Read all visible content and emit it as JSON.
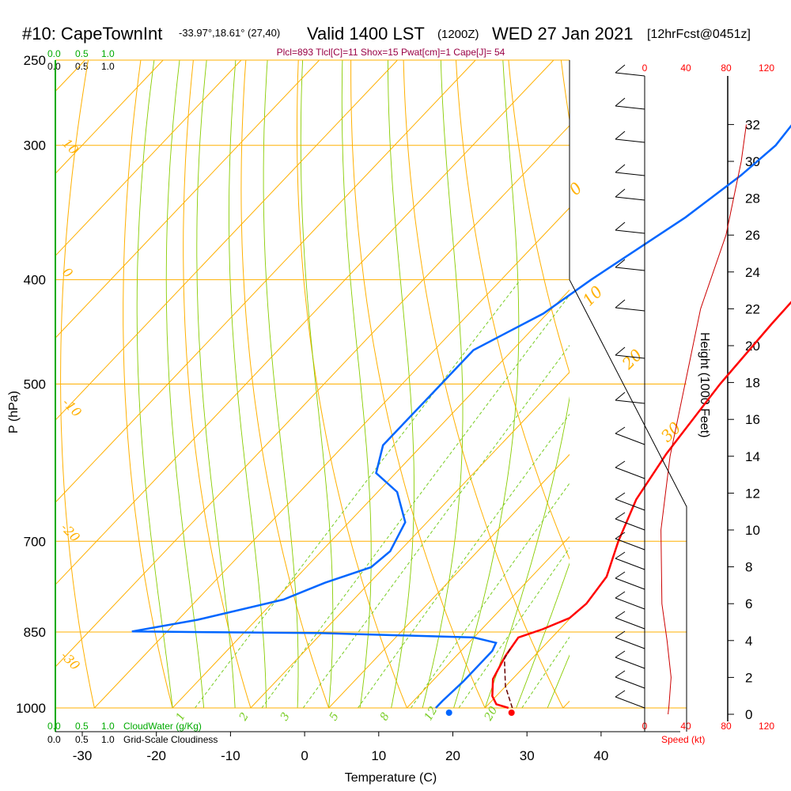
{
  "header": {
    "station": "#10: CapeTownInt",
    "location": "-33.97°,18.61° (27,40)",
    "valid": "Valid 1400 LST",
    "zulu": "(1200Z)",
    "date": "WED 27 Jan 2021",
    "forecast": "[12hrFcst@0451z]",
    "params": "Plcl=893 Tlcl[C]=11 Shox=15 Pwat[cm]=1 Cape[J]= 54"
  },
  "cloud": {
    "top_ticks_green": [
      "0.0",
      "0.5",
      "1.0"
    ],
    "top_ticks_black": [
      "0.0",
      "0.5",
      "1.0"
    ],
    "bottom_ticks_green": [
      "0.0",
      "0.5",
      "1.0"
    ],
    "bottom_ticks_black": [
      "0.0",
      "0.5",
      "1.0"
    ],
    "cloudwater_label": "CloudWater (g/Kg)",
    "cloudiness_label": "Grid-Scale Cloudiness"
  },
  "speed": {
    "top_ticks": [
      "0",
      "40",
      "80",
      "120"
    ],
    "bottom_ticks": [
      "0",
      "40",
      "80",
      "120"
    ],
    "label": "Speed (kt)"
  },
  "height_axis": {
    "label": "Height (1000 Feet)",
    "ticks": [
      "0",
      "2",
      "4",
      "6",
      "8",
      "10",
      "12",
      "14",
      "16",
      "18",
      "20",
      "22",
      "24",
      "26",
      "28",
      "30",
      "32"
    ]
  },
  "colors": {
    "isobar": "#ffb000",
    "dry_adiabat": "#ffb000",
    "moist_adiabat": "#88cc00",
    "mixing_ratio": "#77cc22",
    "temperature": "#ff0000",
    "dewpoint": "#0066ff",
    "parcel": "#660000",
    "cloud": "#00aa00",
    "wind_speed": "#cc0000"
  },
  "chart_data": {
    "type": "line",
    "title": "",
    "xlabel": "Temperature (C)",
    "ylabel": "P (hPa)",
    "xlim": [
      -35,
      45
    ],
    "x_ticks": [
      "-30",
      "-20",
      "-10",
      "0",
      "10",
      "20",
      "30",
      "40"
    ],
    "y_scale": "log",
    "ylim": [
      1000,
      250
    ],
    "y_ticks": [
      "250",
      "300",
      "400",
      "500",
      "700",
      "850",
      "1000"
    ],
    "dry_adiabat_labels": [
      "10",
      "0",
      "-10",
      "-20",
      "-30"
    ],
    "moist_adiabat_labels": [
      "0",
      "10",
      "20",
      "30"
    ],
    "mixing_ratio_labels": [
      "1",
      "2",
      "3",
      "5",
      "8",
      "12",
      "20"
    ],
    "series": [
      {
        "type": "temperature",
        "points": [
          [
            23.0,
            1000
          ],
          [
            21.0,
            992
          ],
          [
            19.5,
            975
          ],
          [
            17.5,
            940
          ],
          [
            16.3,
            895
          ],
          [
            15.7,
            860
          ],
          [
            17.8,
            845
          ],
          [
            19.9,
            825
          ],
          [
            20.3,
            800
          ],
          [
            19.6,
            755
          ],
          [
            16.8,
            700
          ],
          [
            14.0,
            640
          ],
          [
            12.3,
            580
          ],
          [
            10.7,
            500
          ],
          [
            10.0,
            440
          ],
          [
            9.7,
            400
          ],
          [
            7.7,
            345
          ],
          [
            5.7,
            300
          ],
          [
            4.5,
            270
          ]
        ]
      },
      {
        "type": "dewpoint",
        "points": [
          [
            13.7,
            1000
          ],
          [
            13.7,
            985
          ],
          [
            14.0,
            945
          ],
          [
            14.0,
            885
          ],
          [
            13.5,
            870
          ],
          [
            10.0,
            860
          ],
          [
            -10.0,
            852
          ],
          [
            -34.5,
            849
          ],
          [
            -27.5,
            828
          ],
          [
            -19.0,
            793
          ],
          [
            -15.7,
            765
          ],
          [
            -11.7,
            740
          ],
          [
            -11.2,
            715
          ],
          [
            -12.8,
            672
          ],
          [
            -17.5,
            630
          ],
          [
            -22.5,
            605
          ],
          [
            -25.0,
            570
          ],
          [
            -25.0,
            500
          ],
          [
            -25.0,
            465
          ],
          [
            -20.5,
            430
          ],
          [
            -18.5,
            400
          ],
          [
            -14.0,
            350
          ],
          [
            -12.0,
            320
          ],
          [
            -11.2,
            300
          ],
          [
            -11.7,
            285
          ],
          [
            -14.0,
            270
          ]
        ]
      },
      {
        "type": "parcel",
        "points": [
          [
            23.5,
            1000
          ],
          [
            20.0,
            955
          ],
          [
            16.5,
            900
          ],
          [
            16.0,
            880
          ]
        ]
      }
    ],
    "surface_markers": {
      "temperature": 23.4,
      "dewpoint": 15.4
    },
    "wind_speed_profile": [
      [
        23,
        0
      ],
      [
        24,
        0.5
      ],
      [
        26,
        2
      ],
      [
        22,
        4
      ],
      [
        17,
        6
      ],
      [
        16,
        10
      ],
      [
        25,
        14
      ],
      [
        40,
        18
      ],
      [
        55,
        22
      ],
      [
        80,
        26
      ],
      [
        95,
        30
      ],
      [
        100,
        32
      ]
    ]
  }
}
